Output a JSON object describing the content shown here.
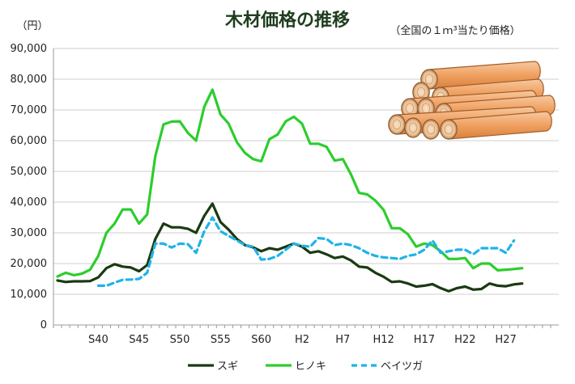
{
  "chart_data": {
    "type": "line",
    "title": "木材価格の推移",
    "subtitle": "（全国の１ｍ³当たり価格）",
    "ylabel": "（円）",
    "xlabel": "",
    "ylim": [
      0,
      90000
    ],
    "yticks": [
      0,
      10000,
      20000,
      30000,
      40000,
      50000,
      60000,
      70000,
      80000,
      90000
    ],
    "ytick_labels": [
      "0",
      "10,000",
      "20,000",
      "30,000",
      "40,000",
      "50,000",
      "60,000",
      "70,000",
      "80,000",
      "90,000"
    ],
    "years": [
      1960,
      1961,
      1962,
      1963,
      1964,
      1965,
      1966,
      1967,
      1968,
      1969,
      1970,
      1971,
      1972,
      1973,
      1974,
      1975,
      1976,
      1977,
      1978,
      1979,
      1980,
      1981,
      1982,
      1983,
      1984,
      1985,
      1986,
      1987,
      1988,
      1989,
      1990,
      1991,
      1992,
      1993,
      1994,
      1995,
      1996,
      1997,
      1998,
      1999,
      2000,
      2001,
      2002,
      2003,
      2004,
      2005,
      2006,
      2007,
      2008,
      2009,
      2010,
      2011,
      2012,
      2013,
      2014,
      2015,
      2016,
      2017,
      2018,
      2019,
      2020,
      2021
    ],
    "xtick_labels": [
      {
        "label": "S40",
        "year": 1965
      },
      {
        "label": "S45",
        "year": 1970
      },
      {
        "label": "S50",
        "year": 1975
      },
      {
        "label": "S55",
        "year": 1980
      },
      {
        "label": "S60",
        "year": 1985
      },
      {
        "label": "H2",
        "year": 1990
      },
      {
        "label": "H7",
        "year": 1995
      },
      {
        "label": "H12",
        "year": 2000
      },
      {
        "label": "H17",
        "year": 2005
      },
      {
        "label": "H22",
        "year": 2010
      },
      {
        "label": "H27",
        "year": 2015
      }
    ],
    "grid": true,
    "legend_position": "bottom",
    "series": [
      {
        "name": "スギ",
        "color": "#1a3a12",
        "style": "solid",
        "values": [
          14500,
          14000,
          14200,
          14200,
          14300,
          15500,
          18500,
          19800,
          19000,
          18700,
          17500,
          19500,
          28000,
          33000,
          31800,
          31800,
          31300,
          30000,
          35500,
          39500,
          33500,
          31000,
          28000,
          26000,
          25300,
          24000,
          25000,
          24500,
          25500,
          26500,
          25500,
          23500,
          24000,
          23000,
          21800,
          22300,
          21000,
          19000,
          18700,
          17000,
          15700,
          14000,
          14200,
          13500,
          12500,
          12800,
          13300,
          12000,
          11000,
          12000,
          12500,
          11500,
          11700,
          13500,
          12800,
          12600,
          13200,
          13500,
          null,
          null,
          null,
          null
        ]
      },
      {
        "name": "ヒノキ",
        "color": "#2dcd2d",
        "style": "solid",
        "values": [
          15800,
          17000,
          16200,
          16700,
          18000,
          22500,
          30000,
          33000,
          37600,
          37600,
          33000,
          36000,
          55000,
          65300,
          66200,
          66300,
          62500,
          60000,
          71000,
          76600,
          68500,
          65500,
          59500,
          56000,
          54000,
          53300,
          60500,
          62000,
          66300,
          67800,
          65500,
          59000,
          59000,
          58000,
          53500,
          54000,
          49000,
          43000,
          42500,
          40500,
          37500,
          31500,
          31500,
          29500,
          25500,
          26500,
          26000,
          24000,
          21500,
          21500,
          21800,
          18500,
          20000,
          20000,
          17800,
          18000,
          18200,
          18500,
          null,
          null,
          null,
          null
        ]
      },
      {
        "name": "ベイツガ",
        "color": "#1fb3e8",
        "style": "dashed",
        "values": [
          null,
          null,
          null,
          null,
          null,
          12800,
          12800,
          13800,
          14700,
          14800,
          15000,
          17000,
          26500,
          26500,
          25200,
          26500,
          26300,
          23500,
          30500,
          35000,
          30500,
          29000,
          27500,
          26000,
          25500,
          21300,
          21500,
          22500,
          24500,
          26500,
          25800,
          25500,
          28300,
          28000,
          26000,
          26500,
          26000,
          25000,
          23500,
          22500,
          22000,
          21800,
          21500,
          22500,
          23000,
          24500,
          27500,
          23500,
          24000,
          24500,
          24500,
          23000,
          25000,
          25000,
          25000,
          23500,
          27500,
          null,
          null,
          null,
          null,
          null
        ]
      }
    ]
  }
}
